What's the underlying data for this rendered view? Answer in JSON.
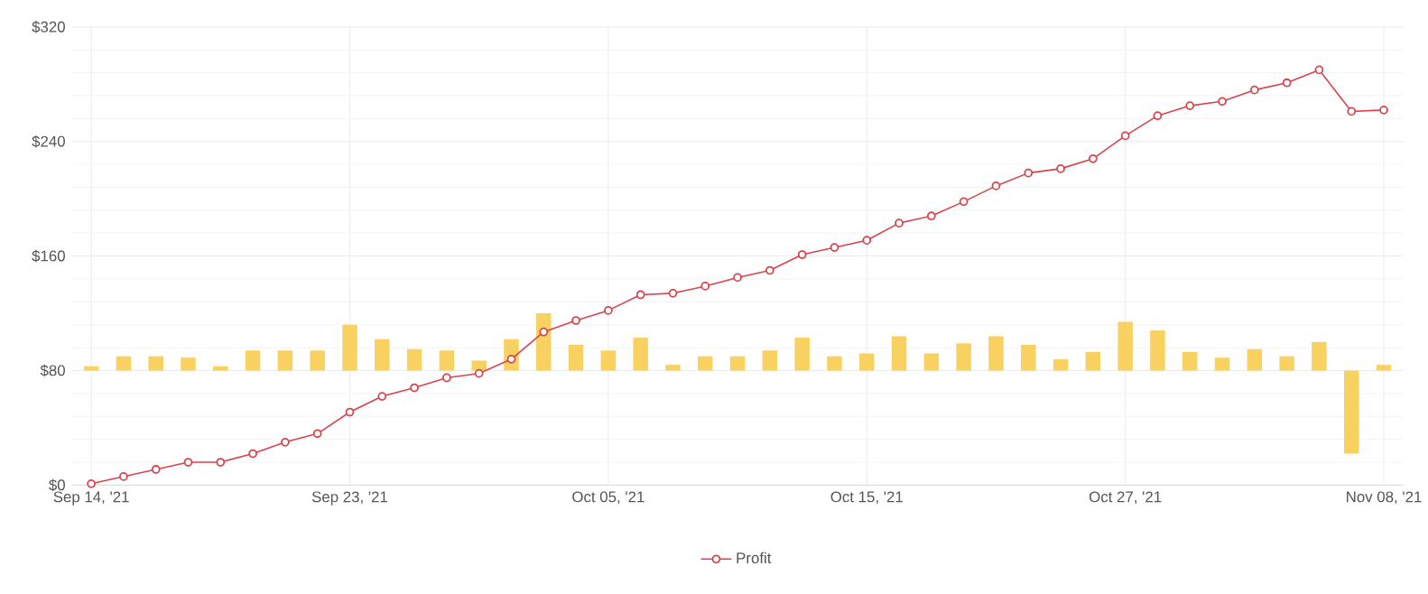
{
  "chart_data": {
    "type": "line",
    "categories": [
      "Sep 14, '21",
      null,
      null,
      null,
      null,
      null,
      null,
      null,
      "Sep 23, '21",
      null,
      null,
      null,
      null,
      null,
      null,
      null,
      "Oct 05, '21",
      null,
      null,
      null,
      null,
      null,
      null,
      null,
      "Oct 15, '21",
      null,
      null,
      null,
      null,
      null,
      null,
      null,
      "Oct 27, '21",
      null,
      null,
      null,
      null,
      null,
      null,
      null,
      "Nov 08, '21"
    ],
    "series": [
      {
        "type": "bar",
        "color": "#f9d160",
        "base": [
          80,
          80,
          80,
          80,
          80,
          80,
          80,
          80,
          80,
          80,
          80,
          80,
          80,
          80,
          80,
          80,
          80,
          80,
          80,
          80,
          80,
          80,
          80,
          80,
          80,
          80,
          80,
          80,
          80,
          80,
          80,
          80,
          80,
          80,
          80,
          80,
          80,
          80,
          80,
          80,
          80
        ],
        "values": [
          3,
          10,
          10,
          9,
          3,
          14,
          14,
          14,
          32,
          22,
          15,
          14,
          7,
          22,
          40,
          18,
          14,
          23,
          4,
          10,
          10,
          14,
          23,
          10,
          12,
          24,
          12,
          19,
          24,
          18,
          8,
          13,
          34,
          28,
          13,
          9,
          15,
          10,
          20,
          -58,
          4
        ]
      },
      {
        "name": "Profit",
        "color": "#d9434b",
        "marker": "circle",
        "values": [
          1,
          6,
          11,
          16,
          16,
          22,
          30,
          36,
          51,
          62,
          68,
          75,
          78,
          88,
          107,
          115,
          122,
          133,
          134,
          139,
          145,
          150,
          161,
          166,
          171,
          183,
          188,
          198,
          209,
          218,
          221,
          228,
          244,
          258,
          265,
          268,
          276,
          281,
          290,
          261,
          262
        ]
      }
    ],
    "ylim": [
      0,
      320
    ],
    "yticks": [
      {
        "value": 0,
        "label": "$0"
      },
      {
        "value": 80,
        "label": "$80"
      },
      {
        "value": 160,
        "label": "$160"
      },
      {
        "value": 240,
        "label": "$240"
      },
      {
        "value": 320,
        "label": "$320"
      }
    ],
    "grid": true,
    "legend": "bottom"
  }
}
